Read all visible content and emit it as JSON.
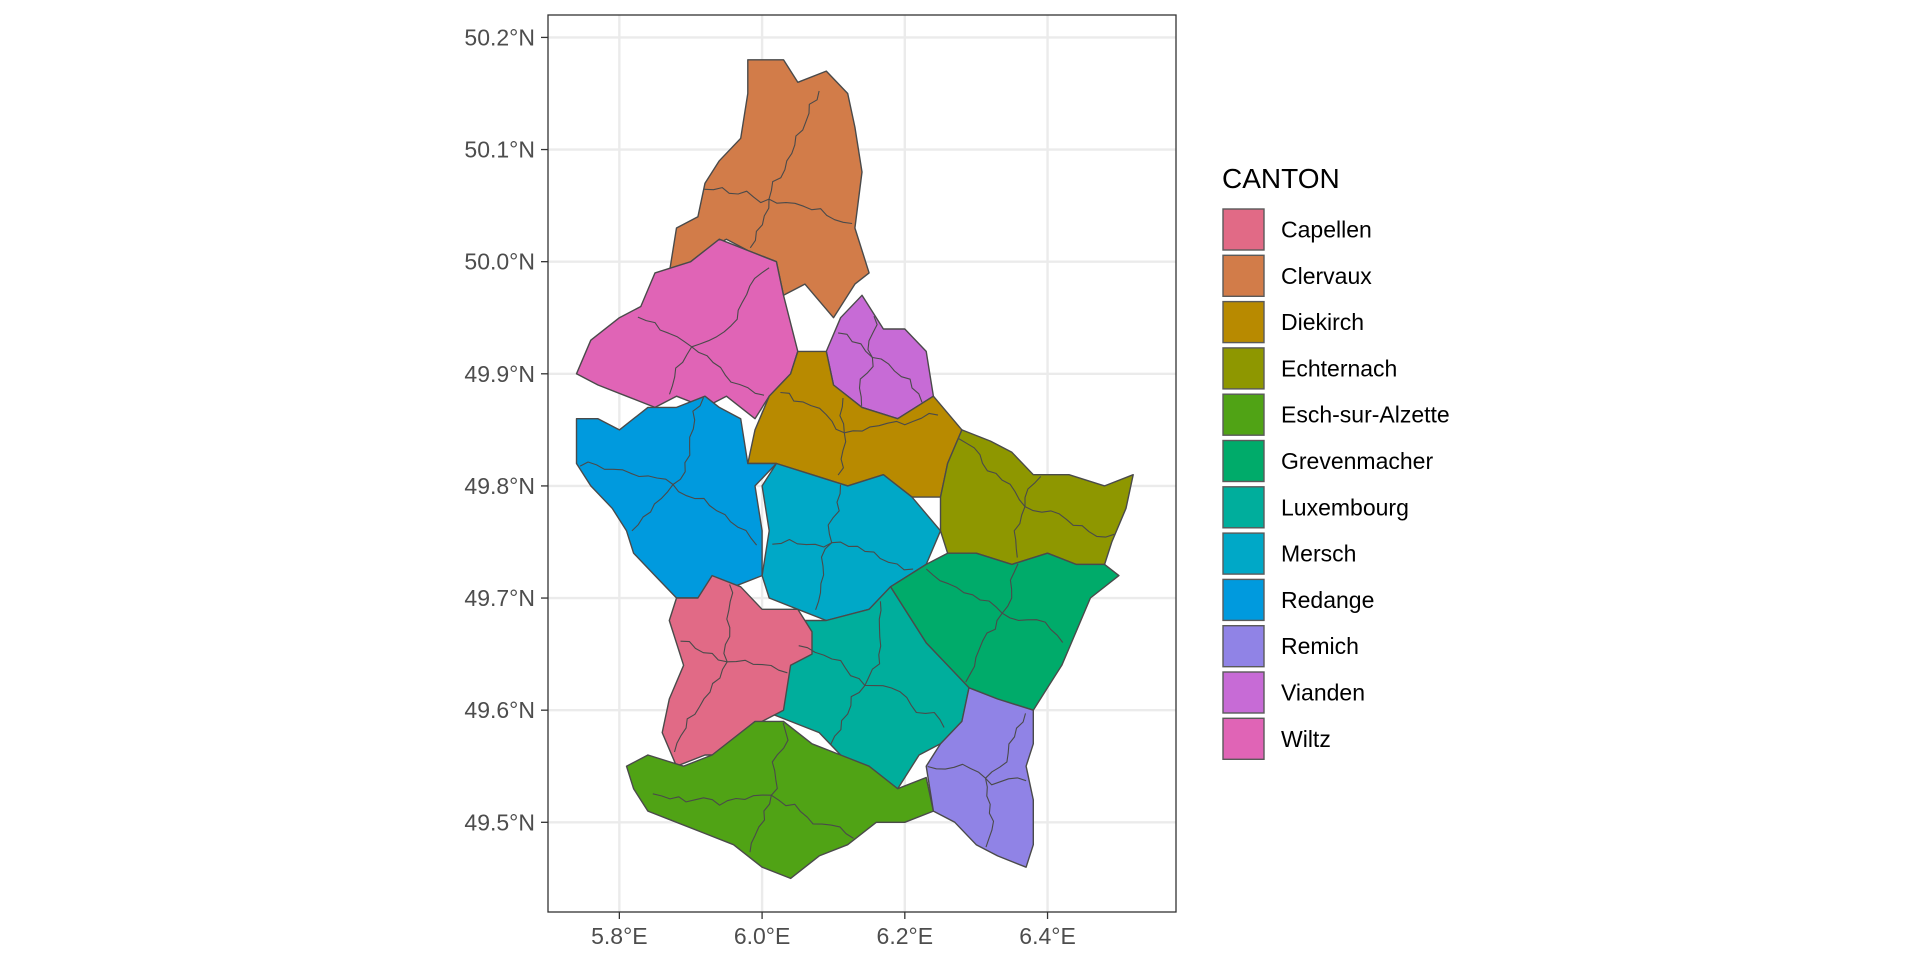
{
  "chart_data": {
    "type": "map",
    "xlim": [
      5.7,
      6.58
    ],
    "ylim": [
      49.42,
      50.22
    ],
    "x_ticks": [
      {
        "value": 5.8,
        "label": "5.8°E"
      },
      {
        "value": 6.0,
        "label": "6.0°E"
      },
      {
        "value": 6.2,
        "label": "6.2°E"
      },
      {
        "value": 6.4,
        "label": "6.4°E"
      }
    ],
    "y_ticks": [
      {
        "value": 50.2,
        "label": "50.2°N"
      },
      {
        "value": 50.1,
        "label": "50.1°N"
      },
      {
        "value": 50.0,
        "label": "50.0°N"
      },
      {
        "value": 49.9,
        "label": "49.9°N"
      },
      {
        "value": 49.8,
        "label": "49.8°N"
      },
      {
        "value": 49.7,
        "label": "49.7°N"
      },
      {
        "value": 49.6,
        "label": "49.6°N"
      },
      {
        "value": 49.5,
        "label": "49.5°N"
      }
    ],
    "grid": true,
    "legend": {
      "title": "CANTON",
      "position": "right",
      "entries": [
        {
          "label": "Capellen",
          "color": "#E16A86"
        },
        {
          "label": "Clervaux",
          "color": "#D27C49"
        },
        {
          "label": "Diekirch",
          "color": "#B88A00"
        },
        {
          "label": "Echternach",
          "color": "#8E9700"
        },
        {
          "label": "Esch-sur-Alzette",
          "color": "#50A315"
        },
        {
          "label": "Grevenmacher",
          "color": "#00AB6A"
        },
        {
          "label": "Luxembourg",
          "color": "#00AE9C"
        },
        {
          "label": "Mersch",
          "color": "#00A8C7"
        },
        {
          "label": "Redange",
          "color": "#009ADE"
        },
        {
          "label": "Remich",
          "color": "#9083E6"
        },
        {
          "label": "Vianden",
          "color": "#C76BD6"
        },
        {
          "label": "Wiltz",
          "color": "#E064B6"
        }
      ]
    },
    "regions": [
      {
        "name": "Clervaux",
        "color": "#D27C49",
        "outline": [
          [
            5.87,
            49.99
          ],
          [
            5.88,
            50.03
          ],
          [
            5.91,
            50.04
          ],
          [
            5.92,
            50.07
          ],
          [
            5.94,
            50.09
          ],
          [
            5.97,
            50.11
          ],
          [
            5.98,
            50.15
          ],
          [
            5.98,
            50.18
          ],
          [
            6.03,
            50.18
          ],
          [
            6.05,
            50.16
          ],
          [
            6.09,
            50.17
          ],
          [
            6.12,
            50.15
          ],
          [
            6.13,
            50.12
          ],
          [
            6.14,
            50.08
          ],
          [
            6.13,
            50.03
          ],
          [
            6.15,
            49.99
          ],
          [
            6.13,
            49.98
          ],
          [
            6.1,
            49.95
          ],
          [
            6.06,
            49.98
          ],
          [
            6.03,
            49.97
          ],
          [
            6.02,
            50.0
          ],
          [
            5.98,
            50.01
          ],
          [
            5.95,
            50.02
          ],
          [
            5.92,
            50.01
          ],
          [
            5.9,
            50.0
          ],
          [
            5.87,
            49.99
          ]
        ]
      },
      {
        "name": "Wiltz",
        "color": "#E064B6",
        "outline": [
          [
            5.74,
            49.9
          ],
          [
            5.76,
            49.93
          ],
          [
            5.8,
            49.95
          ],
          [
            5.83,
            49.96
          ],
          [
            5.85,
            49.99
          ],
          [
            5.9,
            50.0
          ],
          [
            5.94,
            50.02
          ],
          [
            5.98,
            50.01
          ],
          [
            6.02,
            50.0
          ],
          [
            6.03,
            49.97
          ],
          [
            6.05,
            49.92
          ],
          [
            6.04,
            49.9
          ],
          [
            6.01,
            49.88
          ],
          [
            5.99,
            49.86
          ],
          [
            5.97,
            49.87
          ],
          [
            5.95,
            49.88
          ],
          [
            5.92,
            49.87
          ],
          [
            5.88,
            49.88
          ],
          [
            5.85,
            49.87
          ],
          [
            5.81,
            49.88
          ],
          [
            5.77,
            49.89
          ],
          [
            5.74,
            49.9
          ]
        ]
      },
      {
        "name": "Vianden",
        "color": "#C76BD6",
        "outline": [
          [
            6.09,
            49.92
          ],
          [
            6.11,
            49.95
          ],
          [
            6.14,
            49.97
          ],
          [
            6.17,
            49.94
          ],
          [
            6.2,
            49.94
          ],
          [
            6.23,
            49.92
          ],
          [
            6.24,
            49.88
          ],
          [
            6.19,
            49.86
          ],
          [
            6.14,
            49.87
          ],
          [
            6.1,
            49.89
          ],
          [
            6.09,
            49.92
          ]
        ]
      },
      {
        "name": "Diekirch",
        "color": "#B88A00",
        "outline": [
          [
            5.98,
            49.82
          ],
          [
            5.99,
            49.85
          ],
          [
            6.01,
            49.88
          ],
          [
            6.04,
            49.9
          ],
          [
            6.05,
            49.92
          ],
          [
            6.09,
            49.92
          ],
          [
            6.1,
            49.89
          ],
          [
            6.14,
            49.87
          ],
          [
            6.19,
            49.86
          ],
          [
            6.24,
            49.88
          ],
          [
            6.28,
            49.85
          ],
          [
            6.26,
            49.82
          ],
          [
            6.25,
            49.79
          ],
          [
            6.21,
            49.79
          ],
          [
            6.17,
            49.81
          ],
          [
            6.12,
            49.8
          ],
          [
            6.07,
            49.81
          ],
          [
            6.02,
            49.82
          ],
          [
            5.98,
            49.82
          ]
        ]
      },
      {
        "name": "Redange",
        "color": "#009ADE",
        "outline": [
          [
            5.74,
            49.86
          ],
          [
            5.74,
            49.82
          ],
          [
            5.76,
            49.8
          ],
          [
            5.79,
            49.78
          ],
          [
            5.81,
            49.76
          ],
          [
            5.82,
            49.74
          ],
          [
            5.85,
            49.72
          ],
          [
            5.88,
            49.7
          ],
          [
            5.93,
            49.7
          ],
          [
            5.96,
            49.71
          ],
          [
            6.0,
            49.72
          ],
          [
            6.0,
            49.76
          ],
          [
            5.99,
            49.8
          ],
          [
            6.02,
            49.82
          ],
          [
            5.98,
            49.82
          ],
          [
            5.97,
            49.86
          ],
          [
            5.94,
            49.87
          ],
          [
            5.92,
            49.88
          ],
          [
            5.88,
            49.87
          ],
          [
            5.84,
            49.87
          ],
          [
            5.8,
            49.85
          ],
          [
            5.77,
            49.86
          ],
          [
            5.74,
            49.86
          ]
        ]
      },
      {
        "name": "Mersch",
        "color": "#00A8C7",
        "outline": [
          [
            6.0,
            49.72
          ],
          [
            6.01,
            49.76
          ],
          [
            6.0,
            49.8
          ],
          [
            6.02,
            49.82
          ],
          [
            6.07,
            49.81
          ],
          [
            6.12,
            49.8
          ],
          [
            6.17,
            49.81
          ],
          [
            6.21,
            49.79
          ],
          [
            6.25,
            49.76
          ],
          [
            6.23,
            49.73
          ],
          [
            6.18,
            49.71
          ],
          [
            6.15,
            49.69
          ],
          [
            6.09,
            49.68
          ],
          [
            6.05,
            49.69
          ],
          [
            6.01,
            49.7
          ],
          [
            6.0,
            49.72
          ]
        ]
      },
      {
        "name": "Echternach",
        "color": "#8E9700",
        "outline": [
          [
            6.25,
            49.79
          ],
          [
            6.26,
            49.82
          ],
          [
            6.28,
            49.85
          ],
          [
            6.32,
            49.84
          ],
          [
            6.35,
            49.83
          ],
          [
            6.38,
            49.81
          ],
          [
            6.43,
            49.81
          ],
          [
            6.48,
            49.8
          ],
          [
            6.52,
            49.81
          ],
          [
            6.51,
            49.78
          ],
          [
            6.49,
            49.75
          ],
          [
            6.48,
            49.73
          ],
          [
            6.44,
            49.73
          ],
          [
            6.4,
            49.74
          ],
          [
            6.35,
            49.73
          ],
          [
            6.3,
            49.74
          ],
          [
            6.26,
            49.74
          ],
          [
            6.25,
            49.76
          ],
          [
            6.25,
            49.79
          ]
        ]
      },
      {
        "name": "Grevenmacher",
        "color": "#00AB6A",
        "outline": [
          [
            6.18,
            49.71
          ],
          [
            6.23,
            49.73
          ],
          [
            6.26,
            49.74
          ],
          [
            6.3,
            49.74
          ],
          [
            6.35,
            49.73
          ],
          [
            6.4,
            49.74
          ],
          [
            6.44,
            49.73
          ],
          [
            6.48,
            49.73
          ],
          [
            6.5,
            49.72
          ],
          [
            6.46,
            49.7
          ],
          [
            6.44,
            49.67
          ],
          [
            6.42,
            49.64
          ],
          [
            6.4,
            49.62
          ],
          [
            6.38,
            49.6
          ],
          [
            6.33,
            49.61
          ],
          [
            6.29,
            49.62
          ],
          [
            6.26,
            49.64
          ],
          [
            6.23,
            49.66
          ],
          [
            6.2,
            49.69
          ],
          [
            6.18,
            49.71
          ]
        ]
      },
      {
        "name": "Luxembourg",
        "color": "#00AE9C",
        "outline": [
          [
            6.06,
            49.68
          ],
          [
            6.09,
            49.68
          ],
          [
            6.15,
            49.69
          ],
          [
            6.18,
            49.71
          ],
          [
            6.2,
            49.69
          ],
          [
            6.23,
            49.66
          ],
          [
            6.26,
            49.64
          ],
          [
            6.29,
            49.62
          ],
          [
            6.28,
            49.59
          ],
          [
            6.25,
            49.57
          ],
          [
            6.22,
            49.56
          ],
          [
            6.19,
            49.53
          ],
          [
            6.15,
            49.54
          ],
          [
            6.11,
            49.56
          ],
          [
            6.08,
            49.58
          ],
          [
            6.04,
            49.59
          ],
          [
            6.0,
            49.6
          ],
          [
            6.01,
            49.62
          ],
          [
            6.03,
            49.65
          ],
          [
            6.06,
            49.68
          ]
        ]
      },
      {
        "name": "Capellen",
        "color": "#E16A86",
        "outline": [
          [
            5.87,
            49.68
          ],
          [
            5.88,
            49.7
          ],
          [
            5.91,
            49.7
          ],
          [
            5.93,
            49.72
          ],
          [
            5.97,
            49.71
          ],
          [
            6.0,
            49.69
          ],
          [
            6.05,
            49.69
          ],
          [
            6.07,
            49.67
          ],
          [
            6.07,
            49.65
          ],
          [
            6.04,
            49.64
          ],
          [
            6.03,
            49.6
          ],
          [
            6.0,
            49.59
          ],
          [
            5.96,
            49.56
          ],
          [
            5.92,
            49.56
          ],
          [
            5.88,
            49.55
          ],
          [
            5.86,
            49.58
          ],
          [
            5.87,
            49.61
          ],
          [
            5.89,
            49.64
          ],
          [
            5.87,
            49.68
          ]
        ]
      },
      {
        "name": "Esch-sur-Alzette",
        "color": "#50A315",
        "outline": [
          [
            5.81,
            49.55
          ],
          [
            5.84,
            49.56
          ],
          [
            5.89,
            49.55
          ],
          [
            5.93,
            49.56
          ],
          [
            5.99,
            49.59
          ],
          [
            6.03,
            49.59
          ],
          [
            6.07,
            49.57
          ],
          [
            6.11,
            49.56
          ],
          [
            6.15,
            49.55
          ],
          [
            6.19,
            49.53
          ],
          [
            6.23,
            49.54
          ],
          [
            6.24,
            49.51
          ],
          [
            6.2,
            49.5
          ],
          [
            6.16,
            49.5
          ],
          [
            6.12,
            49.48
          ],
          [
            6.08,
            49.47
          ],
          [
            6.04,
            49.45
          ],
          [
            6.0,
            49.46
          ],
          [
            5.96,
            49.48
          ],
          [
            5.92,
            49.49
          ],
          [
            5.88,
            49.5
          ],
          [
            5.84,
            49.51
          ],
          [
            5.82,
            49.53
          ],
          [
            5.81,
            49.55
          ]
        ]
      },
      {
        "name": "Remich",
        "color": "#9083E6",
        "outline": [
          [
            6.23,
            49.55
          ],
          [
            6.25,
            49.57
          ],
          [
            6.28,
            49.59
          ],
          [
            6.29,
            49.62
          ],
          [
            6.33,
            49.61
          ],
          [
            6.38,
            49.6
          ],
          [
            6.38,
            49.57
          ],
          [
            6.37,
            49.55
          ],
          [
            6.38,
            49.52
          ],
          [
            6.38,
            49.48
          ],
          [
            6.37,
            49.46
          ],
          [
            6.33,
            49.47
          ],
          [
            6.3,
            49.48
          ],
          [
            6.27,
            49.5
          ],
          [
            6.24,
            49.51
          ],
          [
            6.23,
            49.55
          ]
        ]
      }
    ]
  }
}
